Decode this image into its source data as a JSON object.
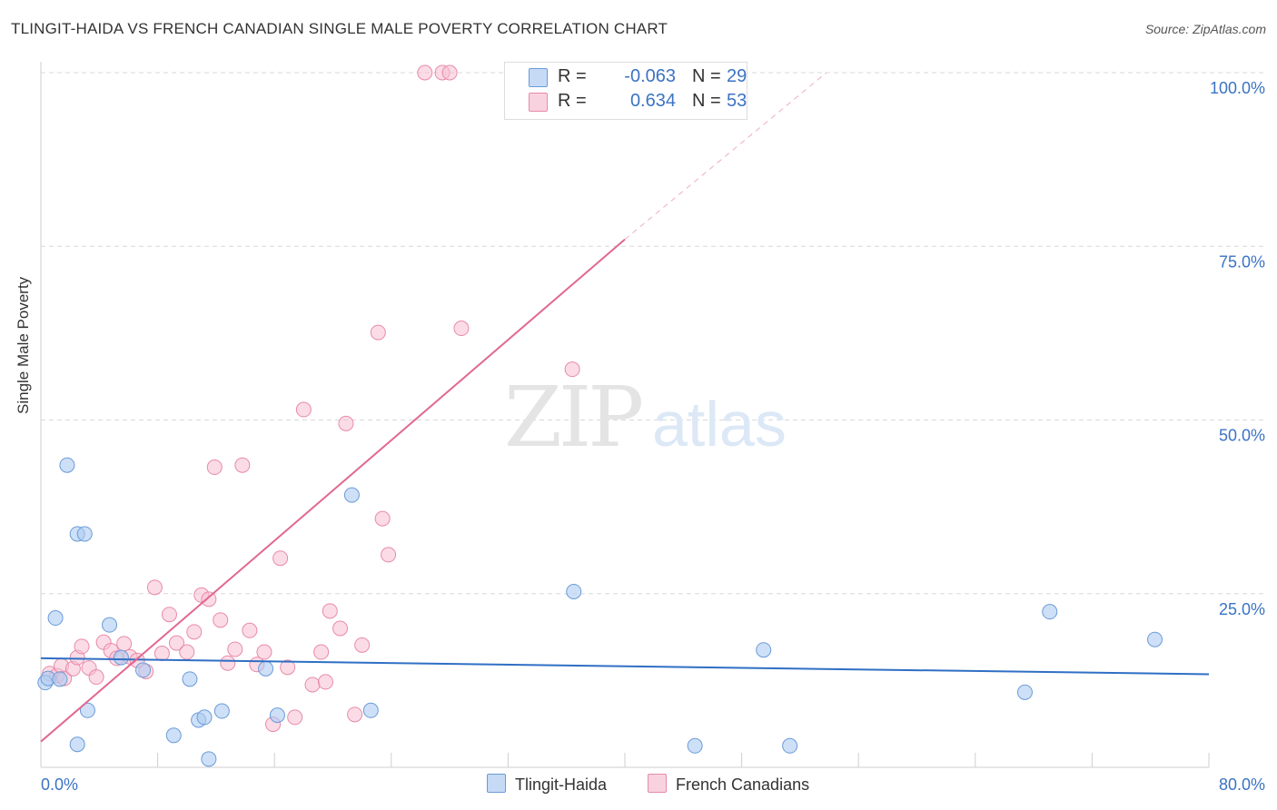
{
  "title": "TLINGIT-HAIDA VS FRENCH CANADIAN SINGLE MALE POVERTY CORRELATION CHART",
  "source": "Source: ZipAtlas.com",
  "watermark": {
    "zip": "ZIP",
    "atlas": "atlas"
  },
  "colors": {
    "blue_fill": "#aecbf2",
    "blue_stroke": "#6a9bd8",
    "blue_line": "#2f6fc4",
    "pink_fill": "#f7c0d2",
    "pink_stroke": "#e88aa8",
    "pink_line": "#e0688f",
    "axis_label": "#3b73c4",
    "grid": "#d8d8d8"
  },
  "legend": {
    "rows": [
      {
        "r_label": "R =",
        "r_value": "-0.063",
        "n_label": "N =",
        "n_value": "29"
      },
      {
        "r_label": "R =",
        "r_value": "0.634",
        "n_label": "N =",
        "n_value": "53"
      }
    ]
  },
  "bottom_legend": {
    "series_a": "Tlingit-Haida",
    "series_b": "French Canadians"
  },
  "chart_data": {
    "type": "scatter",
    "title": "TLINGIT-HAIDA VS FRENCH CANADIAN SINGLE MALE POVERTY CORRELATION CHART",
    "xlabel": "",
    "ylabel": "Single Male Poverty",
    "xlim": [
      0,
      80
    ],
    "ylim": [
      0,
      100
    ],
    "x_tick_labels": [
      "0.0%",
      "80.0%"
    ],
    "y_ticks": [
      25,
      50,
      75,
      100
    ],
    "y_tick_labels": [
      "25.0%",
      "50.0%",
      "75.0%",
      "100.0%"
    ],
    "grid": true,
    "legend_position": "top-center",
    "series": [
      {
        "name": "Tlingit-Haida",
        "color": "#aecbf2",
        "points": [
          [
            0.3,
            12.2
          ],
          [
            0.5,
            12.8
          ],
          [
            1.0,
            21.5
          ],
          [
            1.3,
            12.7
          ],
          [
            1.8,
            43.5
          ],
          [
            2.5,
            33.6
          ],
          [
            3.0,
            33.6
          ],
          [
            3.2,
            8.2
          ],
          [
            4.7,
            20.5
          ],
          [
            5.5,
            15.8
          ],
          [
            7.0,
            14.0
          ],
          [
            9.1,
            4.6
          ],
          [
            10.2,
            12.7
          ],
          [
            10.8,
            6.8
          ],
          [
            11.2,
            7.2
          ],
          [
            11.5,
            1.2
          ],
          [
            12.4,
            8.1
          ],
          [
            15.4,
            14.2
          ],
          [
            16.2,
            7.5
          ],
          [
            21.3,
            39.2
          ],
          [
            22.6,
            8.2
          ],
          [
            36.5,
            25.3
          ],
          [
            44.8,
            3.1
          ],
          [
            49.5,
            16.9
          ],
          [
            51.3,
            3.1
          ],
          [
            2.5,
            3.3
          ],
          [
            67.4,
            10.8
          ],
          [
            69.1,
            22.4
          ],
          [
            76.3,
            18.4
          ]
        ],
        "trend": {
          "x": [
            0,
            80
          ],
          "y": [
            15.7,
            13.4
          ]
        }
      },
      {
        "name": "French Canadians",
        "color": "#f7c0d2",
        "points": [
          [
            0.6,
            13.5
          ],
          [
            1.1,
            13.2
          ],
          [
            1.4,
            14.6
          ],
          [
            1.6,
            12.8
          ],
          [
            2.2,
            14.2
          ],
          [
            2.5,
            15.8
          ],
          [
            2.8,
            17.4
          ],
          [
            3.3,
            14.3
          ],
          [
            3.8,
            13.0
          ],
          [
            4.3,
            18.0
          ],
          [
            4.8,
            16.8
          ],
          [
            5.2,
            15.7
          ],
          [
            5.7,
            17.8
          ],
          [
            6.1,
            15.9
          ],
          [
            6.6,
            15.4
          ],
          [
            7.2,
            13.8
          ],
          [
            7.8,
            25.9
          ],
          [
            8.3,
            16.4
          ],
          [
            8.8,
            22.0
          ],
          [
            9.3,
            17.9
          ],
          [
            10.0,
            16.6
          ],
          [
            10.5,
            19.5
          ],
          [
            11.0,
            24.8
          ],
          [
            11.5,
            24.2
          ],
          [
            11.9,
            43.2
          ],
          [
            12.3,
            21.2
          ],
          [
            12.8,
            15.0
          ],
          [
            13.3,
            17.0
          ],
          [
            13.8,
            43.5
          ],
          [
            14.3,
            19.7
          ],
          [
            14.8,
            14.8
          ],
          [
            15.3,
            16.6
          ],
          [
            15.9,
            6.2
          ],
          [
            16.4,
            30.1
          ],
          [
            16.9,
            14.4
          ],
          [
            17.4,
            7.2
          ],
          [
            18.0,
            51.5
          ],
          [
            18.6,
            11.9
          ],
          [
            19.2,
            16.6
          ],
          [
            19.5,
            12.3
          ],
          [
            19.8,
            22.5
          ],
          [
            20.5,
            20.0
          ],
          [
            20.9,
            49.5
          ],
          [
            21.5,
            7.6
          ],
          [
            22.0,
            17.6
          ],
          [
            23.1,
            62.6
          ],
          [
            23.4,
            35.8
          ],
          [
            23.8,
            30.6
          ],
          [
            26.3,
            100.0
          ],
          [
            27.5,
            100.0
          ],
          [
            28.0,
            100.0
          ],
          [
            28.8,
            63.2
          ],
          [
            36.4,
            57.3
          ]
        ],
        "trend": {
          "x": [
            0,
            40
          ],
          "y": [
            3.7,
            76.0
          ],
          "extrapolated_to": [
            53.8,
            100.0
          ]
        }
      }
    ]
  }
}
